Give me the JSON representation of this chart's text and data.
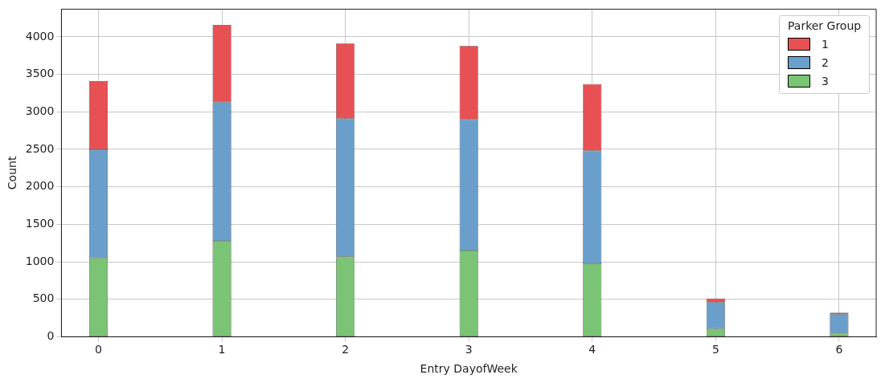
{
  "chart_data": {
    "type": "bar",
    "xlabel": "Entry DayofWeek",
    "ylabel": "Count",
    "legend_title": "Parker Group",
    "stacked": true,
    "x": [
      0,
      1,
      2,
      3,
      4,
      5,
      6
    ],
    "series": [
      {
        "name": "3",
        "color": "#7bc375",
        "values": [
          1050,
          1280,
          1070,
          1150,
          980,
          110,
          50
        ]
      },
      {
        "name": "2",
        "color": "#6a9fcb",
        "values": [
          1450,
          1850,
          1840,
          1750,
          1500,
          350,
          250
        ]
      },
      {
        "name": "1",
        "color": "#e75154",
        "values": [
          910,
          1030,
          1000,
          980,
          890,
          50,
          20
        ]
      }
    ],
    "xlim": [
      -0.3,
      6.3
    ],
    "xticks": [
      0,
      1,
      2,
      3,
      4,
      5,
      6
    ],
    "ylim": [
      0,
      4370
    ],
    "yticks": [
      0,
      500,
      1000,
      1500,
      2000,
      2500,
      3000,
      3500,
      4000
    ],
    "grid": true,
    "legend": "top right"
  }
}
